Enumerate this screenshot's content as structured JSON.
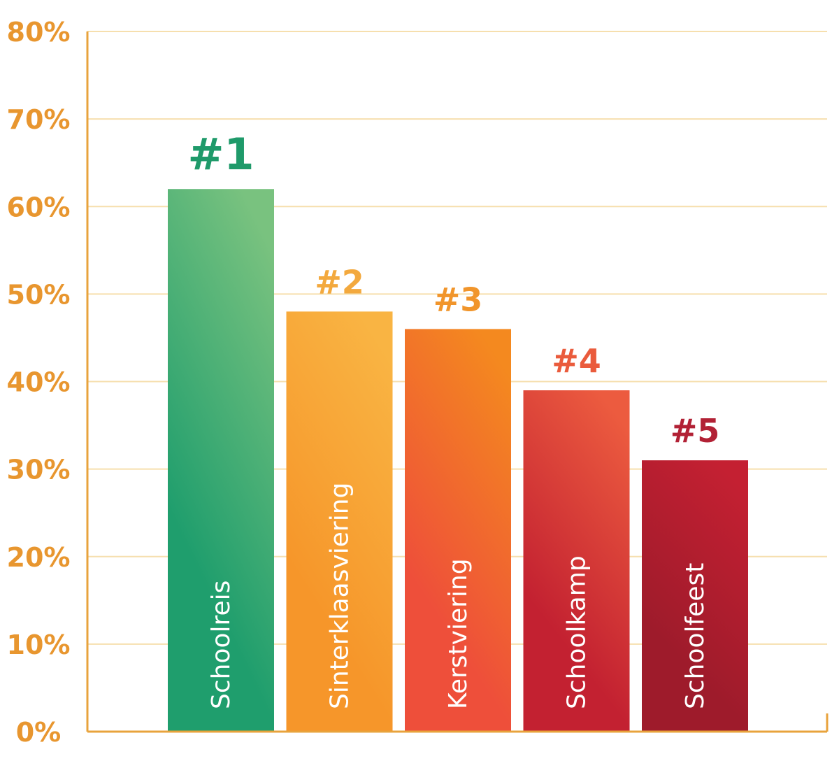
{
  "chart_data": {
    "type": "bar",
    "categories": [
      "Schoolreis",
      "Sinterklaasviering",
      "Kerstviering",
      "Schoolkamp",
      "Schoolfeest"
    ],
    "values": [
      62,
      48,
      46,
      39,
      31
    ],
    "ranks": [
      "#1",
      "#2",
      "#3",
      "#4",
      "#5"
    ],
    "y_ticks": [
      "0%",
      "10%",
      "20%",
      "30%",
      "40%",
      "50%",
      "60%",
      "70%",
      "80%"
    ],
    "ylim": [
      0,
      80
    ],
    "grid": true,
    "axis_color": "#e8a33c",
    "tick_color": "#e8962f",
    "grid_color": "#f6dfae",
    "bar_colors": [
      [
        "#79c27f",
        "#1f9e6d"
      ],
      [
        "#f9b443",
        "#f6962a"
      ],
      [
        "#f4891f",
        "#ee4f3a"
      ],
      [
        "#ec5b3f",
        "#c32131"
      ],
      [
        "#c42032",
        "#9e1b2b"
      ]
    ],
    "rank_colors": [
      "#1f9a6a",
      "#f3a93e",
      "#f1952b",
      "#ea5b3c",
      "#b22135"
    ]
  }
}
